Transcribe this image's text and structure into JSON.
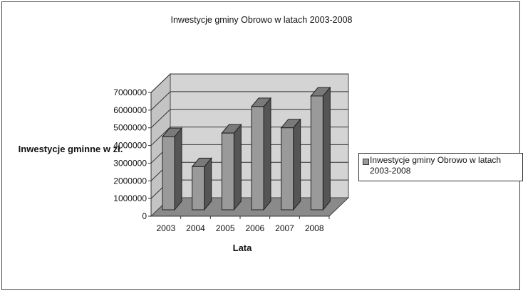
{
  "chart_data": {
    "type": "bar",
    "title": "Inwestycje gminy Obrowo w latach 2003-2008",
    "xlabel": "Lata",
    "ylabel": "Inwestycje gminne w zł.",
    "categories": [
      "2003",
      "2004",
      "2005",
      "2006",
      "2007",
      "2008"
    ],
    "series": [
      {
        "name": "Inwestycje gminy Obrowo w latach 2003-2008",
        "values": [
          4500000,
          2800000,
          4700000,
          6200000,
          5000000,
          6800000
        ]
      }
    ],
    "ylim": [
      0,
      7000000
    ],
    "yticks": [
      "0",
      "1000000",
      "2000000",
      "3000000",
      "4000000",
      "5000000",
      "6000000",
      "7000000"
    ],
    "grid": true,
    "legend_position": "right",
    "colors": {
      "bar_front": "#9a9a9a",
      "bar_side": "#555555",
      "bar_top": "#7a7a7a",
      "back_wall": "#d4d4d4",
      "side_wall": "#c4c4c4",
      "floor": "#8a8a8a"
    }
  }
}
